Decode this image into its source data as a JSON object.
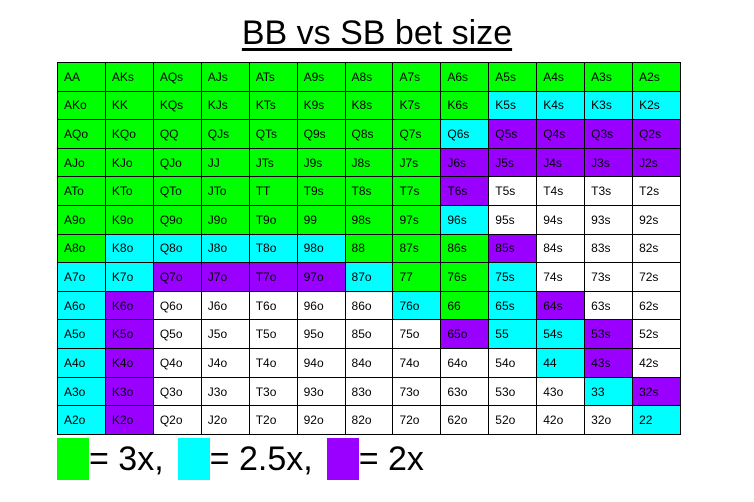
{
  "chart_data": {
    "type": "heatmap",
    "title": "BB vs SB bet size",
    "colors": {
      "3x": "#00ff00",
      "2.5x": "#00ffff",
      "2x": "#9900ff",
      "none": "#ffffff"
    },
    "legend": [
      {
        "color": "#00ff00",
        "label": "= 3x,"
      },
      {
        "color": "#00ffff",
        "label": "= 2.5x,"
      },
      {
        "color": "#9900ff",
        "label": "= 2x"
      }
    ],
    "rows": [
      [
        [
          "AA",
          "3x"
        ],
        [
          "AKs",
          "3x"
        ],
        [
          "AQs",
          "3x"
        ],
        [
          "AJs",
          "3x"
        ],
        [
          "ATs",
          "3x"
        ],
        [
          "A9s",
          "3x"
        ],
        [
          "A8s",
          "3x"
        ],
        [
          "A7s",
          "3x"
        ],
        [
          "A6s",
          "3x"
        ],
        [
          "A5s",
          "3x"
        ],
        [
          "A4s",
          "3x"
        ],
        [
          "A3s",
          "3x"
        ],
        [
          "A2s",
          "3x"
        ]
      ],
      [
        [
          "AKo",
          "3x"
        ],
        [
          "KK",
          "3x"
        ],
        [
          "KQs",
          "3x"
        ],
        [
          "KJs",
          "3x"
        ],
        [
          "KTs",
          "3x"
        ],
        [
          "K9s",
          "3x"
        ],
        [
          "K8s",
          "3x"
        ],
        [
          "K7s",
          "3x"
        ],
        [
          "K6s",
          "3x"
        ],
        [
          "K5s",
          "2.5x"
        ],
        [
          "K4s",
          "2.5x"
        ],
        [
          "K3s",
          "2.5x"
        ],
        [
          "K2s",
          "2.5x"
        ]
      ],
      [
        [
          "AQo",
          "3x"
        ],
        [
          "KQo",
          "3x"
        ],
        [
          "QQ",
          "3x"
        ],
        [
          "QJs",
          "3x"
        ],
        [
          "QTs",
          "3x"
        ],
        [
          "Q9s",
          "3x"
        ],
        [
          "Q8s",
          "3x"
        ],
        [
          "Q7s",
          "3x"
        ],
        [
          "Q6s",
          "2.5x"
        ],
        [
          "Q5s",
          "2x"
        ],
        [
          "Q4s",
          "2x"
        ],
        [
          "Q3s",
          "2x"
        ],
        [
          "Q2s",
          "2x"
        ]
      ],
      [
        [
          "AJo",
          "3x"
        ],
        [
          "KJo",
          "3x"
        ],
        [
          "QJo",
          "3x"
        ],
        [
          "JJ",
          "3x"
        ],
        [
          "JTs",
          "3x"
        ],
        [
          "J9s",
          "3x"
        ],
        [
          "J8s",
          "3x"
        ],
        [
          "J7s",
          "3x"
        ],
        [
          "J6s",
          "2x"
        ],
        [
          "J5s",
          "2x"
        ],
        [
          "J4s",
          "2x"
        ],
        [
          "J3s",
          "2x"
        ],
        [
          "J2s",
          "2x"
        ]
      ],
      [
        [
          "ATo",
          "3x"
        ],
        [
          "KTo",
          "3x"
        ],
        [
          "QTo",
          "3x"
        ],
        [
          "JTo",
          "3x"
        ],
        [
          "TT",
          "3x"
        ],
        [
          "T9s",
          "3x"
        ],
        [
          "T8s",
          "3x"
        ],
        [
          "T7s",
          "3x"
        ],
        [
          "T6s",
          "2x"
        ],
        [
          "T5s",
          "none"
        ],
        [
          "T4s",
          "none"
        ],
        [
          "T3s",
          "none"
        ],
        [
          "T2s",
          "none"
        ]
      ],
      [
        [
          "A9o",
          "3x"
        ],
        [
          "K9o",
          "3x"
        ],
        [
          "Q9o",
          "3x"
        ],
        [
          "J9o",
          "3x"
        ],
        [
          "T9o",
          "3x"
        ],
        [
          "99",
          "3x"
        ],
        [
          "98s",
          "3x"
        ],
        [
          "97s",
          "3x"
        ],
        [
          "96s",
          "2.5x"
        ],
        [
          "95s",
          "none"
        ],
        [
          "94s",
          "none"
        ],
        [
          "93s",
          "none"
        ],
        [
          "92s",
          "none"
        ]
      ],
      [
        [
          "A8o",
          "3x"
        ],
        [
          "K8o",
          "2.5x"
        ],
        [
          "Q8o",
          "2.5x"
        ],
        [
          "J8o",
          "2.5x"
        ],
        [
          "T8o",
          "2.5x"
        ],
        [
          "98o",
          "2.5x"
        ],
        [
          "88",
          "3x"
        ],
        [
          "87s",
          "3x"
        ],
        [
          "86s",
          "3x"
        ],
        [
          "85s",
          "2x"
        ],
        [
          "84s",
          "none"
        ],
        [
          "83s",
          "none"
        ],
        [
          "82s",
          "none"
        ]
      ],
      [
        [
          "A7o",
          "2.5x"
        ],
        [
          "K7o",
          "2.5x"
        ],
        [
          "Q7o",
          "2x"
        ],
        [
          "J7o",
          "2x"
        ],
        [
          "T7o",
          "2x"
        ],
        [
          "97o",
          "2x"
        ],
        [
          "87o",
          "2.5x"
        ],
        [
          "77",
          "3x"
        ],
        [
          "76s",
          "3x"
        ],
        [
          "75s",
          "2.5x"
        ],
        [
          "74s",
          "none"
        ],
        [
          "73s",
          "none"
        ],
        [
          "72s",
          "none"
        ]
      ],
      [
        [
          "A6o",
          "2.5x"
        ],
        [
          "K6o",
          "2x"
        ],
        [
          "Q6o",
          "none"
        ],
        [
          "J6o",
          "none"
        ],
        [
          "T6o",
          "none"
        ],
        [
          "96o",
          "none"
        ],
        [
          "86o",
          "none"
        ],
        [
          "76o",
          "2.5x"
        ],
        [
          "66",
          "3x"
        ],
        [
          "65s",
          "2.5x"
        ],
        [
          "64s",
          "2x"
        ],
        [
          "63s",
          "none"
        ],
        [
          "62s",
          "none"
        ]
      ],
      [
        [
          "A5o",
          "2.5x"
        ],
        [
          "K5o",
          "2x"
        ],
        [
          "Q5o",
          "none"
        ],
        [
          "J5o",
          "none"
        ],
        [
          "T5o",
          "none"
        ],
        [
          "95o",
          "none"
        ],
        [
          "85o",
          "none"
        ],
        [
          "75o",
          "none"
        ],
        [
          "65o",
          "2x"
        ],
        [
          "55",
          "2.5x"
        ],
        [
          "54s",
          "2.5x"
        ],
        [
          "53s",
          "2x"
        ],
        [
          "52s",
          "none"
        ]
      ],
      [
        [
          "A4o",
          "2.5x"
        ],
        [
          "K4o",
          "2x"
        ],
        [
          "Q4o",
          "none"
        ],
        [
          "J4o",
          "none"
        ],
        [
          "T4o",
          "none"
        ],
        [
          "94o",
          "none"
        ],
        [
          "84o",
          "none"
        ],
        [
          "74o",
          "none"
        ],
        [
          "64o",
          "none"
        ],
        [
          "54o",
          "none"
        ],
        [
          "44",
          "2.5x"
        ],
        [
          "43s",
          "2x"
        ],
        [
          "42s",
          "none"
        ]
      ],
      [
        [
          "A3o",
          "2.5x"
        ],
        [
          "K3o",
          "2x"
        ],
        [
          "Q3o",
          "none"
        ],
        [
          "J3o",
          "none"
        ],
        [
          "T3o",
          "none"
        ],
        [
          "93o",
          "none"
        ],
        [
          "83o",
          "none"
        ],
        [
          "73o",
          "none"
        ],
        [
          "63o",
          "none"
        ],
        [
          "53o",
          "none"
        ],
        [
          "43o",
          "none"
        ],
        [
          "33",
          "2.5x"
        ],
        [
          "32s",
          "2x"
        ]
      ],
      [
        [
          "A2o",
          "2.5x"
        ],
        [
          "K2o",
          "2x"
        ],
        [
          "Q2o",
          "none"
        ],
        [
          "J2o",
          "none"
        ],
        [
          "T2o",
          "none"
        ],
        [
          "92o",
          "none"
        ],
        [
          "82o",
          "none"
        ],
        [
          "72o",
          "none"
        ],
        [
          "62o",
          "none"
        ],
        [
          "52o",
          "none"
        ],
        [
          "42o",
          "none"
        ],
        [
          "32o",
          "none"
        ],
        [
          "22",
          "2.5x"
        ]
      ]
    ]
  }
}
